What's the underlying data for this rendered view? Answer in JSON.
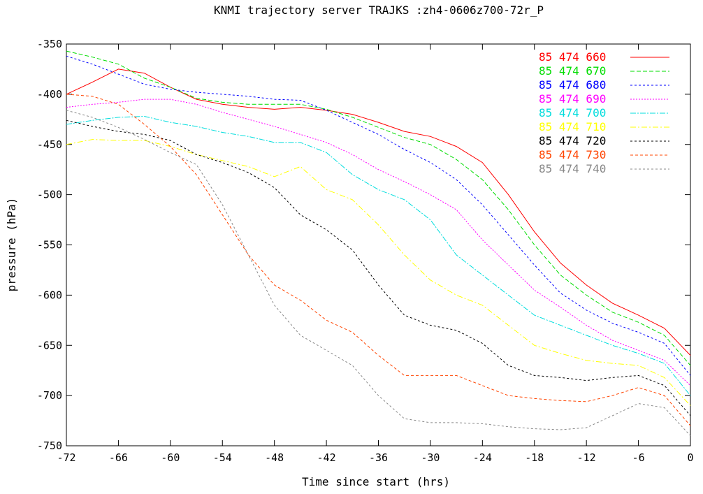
{
  "chart_data": {
    "type": "line",
    "title": "KNMI trajectory server TRAJKS :zh4-0606z700-72r_P",
    "xlabel": "Time since start (hrs)",
    "ylabel": "pressure (hPa)",
    "xlim": [
      -72,
      0
    ],
    "ylim": [
      -750,
      -350
    ],
    "xticks": [
      -72,
      -66,
      -60,
      -54,
      -48,
      -42,
      -36,
      -30,
      -24,
      -18,
      -12,
      -6,
      0
    ],
    "yticks": [
      -350,
      -400,
      -450,
      -500,
      -550,
      -600,
      -650,
      -700,
      -750
    ],
    "grid": false,
    "legend_position": "top-right",
    "x": [
      -72,
      -69,
      -66,
      -63,
      -60,
      -57,
      -54,
      -51,
      -48,
      -45,
      -42,
      -39,
      -36,
      -33,
      -30,
      -27,
      -24,
      -21,
      -18,
      -15,
      -12,
      -9,
      -6,
      -3,
      0
    ],
    "series": [
      {
        "name": "85 474 660",
        "color": "#ff0000",
        "dash": "",
        "values": [
          -400,
          -388,
          -375,
          -379,
          -393,
          -405,
          -410,
          -413,
          -415,
          -413,
          -416,
          -420,
          -428,
          -437,
          -442,
          -452,
          -468,
          -500,
          -537,
          -568,
          -590,
          -608,
          -620,
          -633,
          -660
        ]
      },
      {
        "name": "85 474 670",
        "color": "#00dd00",
        "dash": "6,3",
        "values": [
          -357,
          -363,
          -370,
          -384,
          -393,
          -404,
          -408,
          -410,
          -410,
          -410,
          -415,
          -423,
          -433,
          -443,
          -450,
          -465,
          -485,
          -515,
          -550,
          -580,
          -600,
          -617,
          -627,
          -640,
          -670
        ]
      },
      {
        "name": "85 474 680",
        "color": "#0000ff",
        "dash": "3,3",
        "values": [
          -362,
          -370,
          -380,
          -390,
          -395,
          -398,
          -400,
          -402,
          -405,
          -406,
          -416,
          -428,
          -440,
          -455,
          -468,
          -485,
          -510,
          -540,
          -570,
          -598,
          -615,
          -628,
          -637,
          -648,
          -680
        ]
      },
      {
        "name": "85 474 690",
        "color": "#ff00ff",
        "dash": "2,2",
        "values": [
          -413,
          -410,
          -408,
          -405,
          -405,
          -410,
          -418,
          -425,
          -432,
          -440,
          -448,
          -460,
          -475,
          -487,
          -500,
          -515,
          -545,
          -570,
          -595,
          -612,
          -630,
          -645,
          -655,
          -665,
          -690
        ]
      },
      {
        "name": "85 474 700",
        "color": "#00dddd",
        "dash": "8,2,2,2",
        "values": [
          -430,
          -426,
          -423,
          -422,
          -428,
          -432,
          -438,
          -442,
          -448,
          -448,
          -458,
          -480,
          -495,
          -505,
          -525,
          -560,
          -580,
          -600,
          -620,
          -630,
          -640,
          -650,
          -658,
          -668,
          -700
        ]
      },
      {
        "name": "85 474 710",
        "color": "#ffff00",
        "dash": "8,3,2,3",
        "values": [
          -450,
          -445,
          -446,
          -446,
          -452,
          -460,
          -466,
          -472,
          -482,
          -472,
          -495,
          -505,
          -530,
          -560,
          -585,
          -600,
          -610,
          -630,
          -650,
          -658,
          -665,
          -668,
          -670,
          -682,
          -710
        ]
      },
      {
        "name": "85 474 720",
        "color": "#000000",
        "dash": "3,3",
        "values": [
          -426,
          -432,
          -437,
          -440,
          -446,
          -460,
          -468,
          -478,
          -493,
          -520,
          -535,
          -555,
          -590,
          -620,
          -630,
          -635,
          -648,
          -670,
          -680,
          -682,
          -685,
          -682,
          -680,
          -690,
          -720
        ]
      },
      {
        "name": "85 474 730",
        "color": "#ff4400",
        "dash": "4,3",
        "values": [
          -400,
          -402,
          -410,
          -430,
          -452,
          -480,
          -520,
          -560,
          -590,
          -605,
          -625,
          -637,
          -660,
          -680,
          -680,
          -680,
          -690,
          -700,
          -703,
          -705,
          -706,
          -700,
          -692,
          -700,
          -730
        ]
      },
      {
        "name": "85 474 740",
        "color": "#888888",
        "dash": "3,3",
        "values": [
          -416,
          -423,
          -433,
          -445,
          -458,
          -470,
          -510,
          -560,
          -610,
          -640,
          -655,
          -670,
          -700,
          -723,
          -727,
          -727,
          -728,
          -731,
          -733,
          -734,
          -732,
          -720,
          -708,
          -712,
          -740
        ]
      }
    ]
  }
}
